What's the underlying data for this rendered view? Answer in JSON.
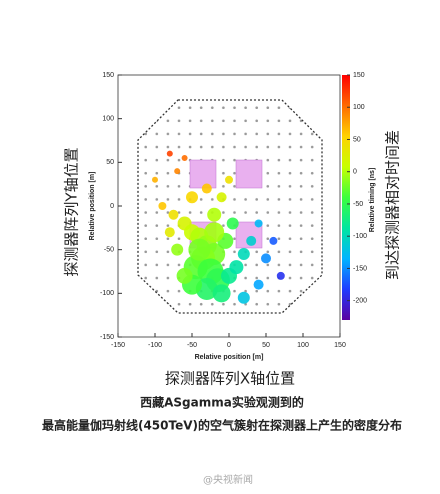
{
  "chart_data": {
    "type": "scatter",
    "x_label": "Relative position [m]",
    "y_label": "Relative position [m]",
    "colorbar_label": "Relative timing [ns]",
    "y_label_cn": "探测器阵列Y轴位置",
    "x_label_cn": "探测器阵列X轴位置",
    "colorbar_label_cn": "到达探测器相对时间差",
    "caption": [
      "西藏ASgamma实验观测到的",
      "最高能量伽玛射线(450TeV)的空气簇射在探测器上产生的密度分布"
    ],
    "watermark": "@央视新闻",
    "xlim": [
      -150,
      150
    ],
    "xticks": [
      -150,
      -100,
      -50,
      0,
      50,
      100,
      150
    ],
    "ylim": [
      -150,
      150
    ],
    "yticks": [
      -150,
      -100,
      -50,
      0,
      50,
      100,
      150
    ],
    "clim": [
      -230,
      150
    ],
    "cticks": [
      -200,
      -150,
      -100,
      -50,
      0,
      50,
      100,
      150
    ],
    "colormap": [
      "#5a00a0",
      "#1f3cff",
      "#00b4ff",
      "#00e6a0",
      "#3cff3c",
      "#c8ff00",
      "#ffd200",
      "#ff6a00",
      "#ff0000"
    ],
    "x": [
      -80,
      -70,
      -100,
      -60,
      -90,
      -75,
      -60,
      -50,
      -40,
      -30,
      -20,
      -35,
      -45,
      -25,
      -15,
      -30,
      -50,
      -60,
      -10,
      0,
      10,
      20,
      30,
      40,
      50,
      60,
      40,
      20,
      -5,
      5,
      -20,
      -10,
      0,
      -30,
      -50,
      -70,
      -80,
      70,
      -20,
      -40
    ],
    "y": [
      60,
      40,
      30,
      55,
      0,
      -10,
      -20,
      -30,
      -35,
      -45,
      -55,
      -60,
      -70,
      -75,
      -85,
      -95,
      -90,
      -80,
      -100,
      -80,
      -70,
      -55,
      -40,
      -20,
      -60,
      -40,
      -90,
      -105,
      -40,
      -20,
      -10,
      10,
      30,
      20,
      10,
      -50,
      -30,
      -80,
      -30,
      -50
    ],
    "timing": [
      120,
      90,
      70,
      100,
      60,
      40,
      20,
      10,
      0,
      -10,
      -20,
      -15,
      -30,
      -40,
      -50,
      -60,
      -40,
      -20,
      -70,
      -80,
      -90,
      -100,
      -110,
      -130,
      -150,
      -170,
      -140,
      -120,
      -30,
      -50,
      0,
      20,
      40,
      60,
      50,
      -10,
      30,
      -190,
      -5,
      -20
    ],
    "size": [
      3,
      3,
      3,
      3,
      4,
      5,
      7,
      8,
      9,
      10,
      11,
      12,
      12,
      13,
      12,
      11,
      10,
      8,
      9,
      8,
      7,
      6,
      5,
      4,
      5,
      4,
      5,
      6,
      8,
      6,
      7,
      5,
      4,
      5,
      6,
      6,
      5,
      4,
      10,
      11
    ]
  }
}
